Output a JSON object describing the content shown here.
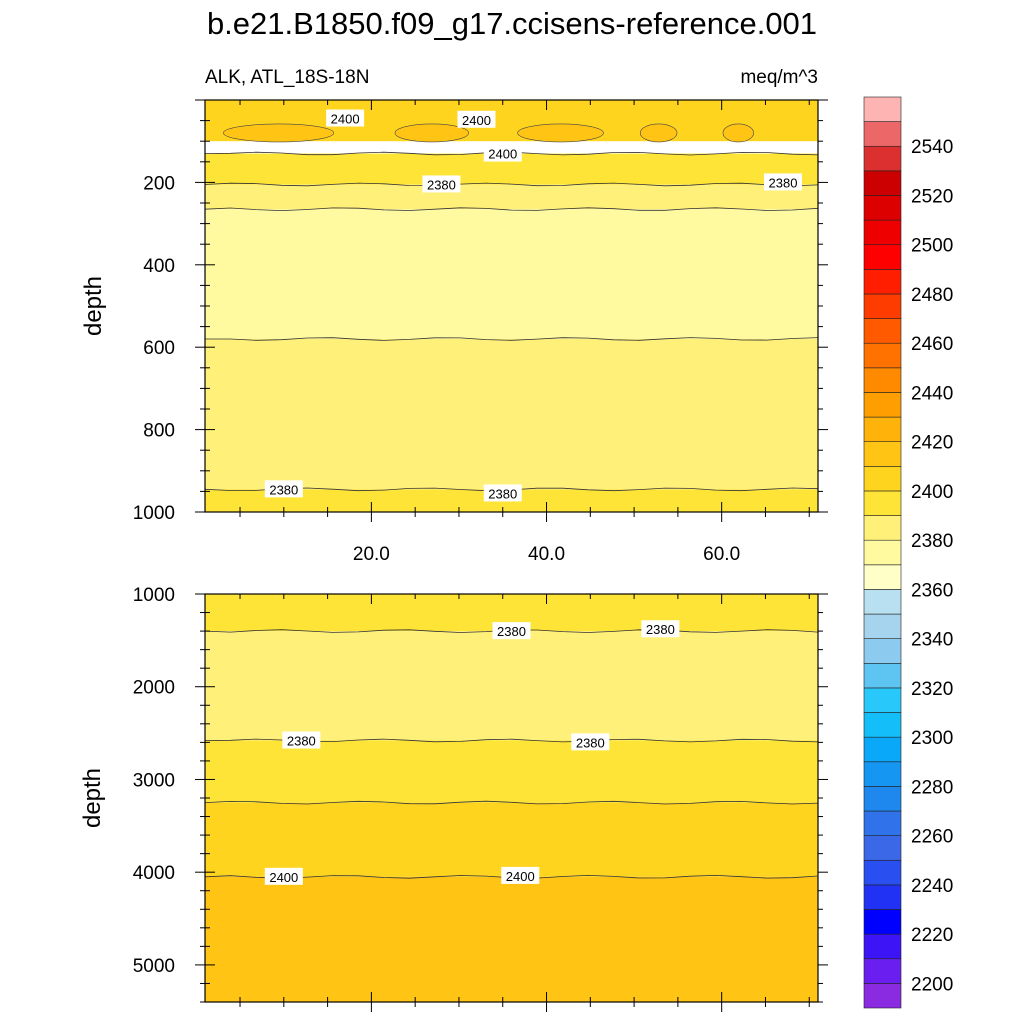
{
  "title": "b.e21.B1850.f09_g17.ccisens-reference.001",
  "subtitle_left": "ALK, ATL_18S-18N",
  "subtitle_right": "meq/m^3",
  "chart_data": [
    {
      "type": "contour",
      "panel": "upper",
      "ylabel": "depth",
      "xlim": [
        1,
        71
      ],
      "ylim": [
        1000,
        0
      ],
      "y_reversed": true,
      "x_ticks": [
        "20.0",
        "40.0",
        "60.0"
      ],
      "y_ticks": [
        "200",
        "400",
        "600",
        "800",
        "1000"
      ],
      "regions": [
        {
          "level_range": [
            2390,
            2400
          ],
          "depth_range": [
            0,
            100
          ]
        },
        {
          "level_range": [
            2400,
            2410
          ],
          "depth_range": [
            30,
            130
          ],
          "note": "patches"
        },
        {
          "level_range": [
            2380,
            2390
          ],
          "depth_range": [
            130,
            205
          ]
        },
        {
          "level_range": [
            2370,
            2380
          ],
          "depth_range": [
            205,
            265
          ]
        },
        {
          "level_range": [
            2360,
            2370
          ],
          "depth_range": [
            265,
            580
          ]
        },
        {
          "level_range": [
            2370,
            2380
          ],
          "depth_range": [
            580,
            945
          ]
        },
        {
          "level_range": [
            2380,
            2390
          ],
          "depth_range": [
            945,
            1000
          ]
        }
      ],
      "contour_labels": [
        {
          "text": "2400",
          "x": 17,
          "depth": 45
        },
        {
          "text": "2400",
          "x": 32,
          "depth": 48
        },
        {
          "text": "2400",
          "x": 35,
          "depth": 130
        },
        {
          "text": "2380",
          "x": 28,
          "depth": 205
        },
        {
          "text": "2380",
          "x": 67,
          "depth": 200
        },
        {
          "text": "2380",
          "x": 10,
          "depth": 945
        },
        {
          "text": "2380",
          "x": 35,
          "depth": 955
        }
      ]
    },
    {
      "type": "contour",
      "panel": "lower",
      "ylabel": "depth",
      "xlim": [
        1,
        71
      ],
      "ylim": [
        5400,
        1000
      ],
      "y_reversed": true,
      "x_ticks": [
        "20.0",
        "40.0",
        "60.0"
      ],
      "y_ticks": [
        "1000",
        "2000",
        "3000",
        "4000",
        "5000"
      ],
      "regions": [
        {
          "level_range": [
            2380,
            2390
          ],
          "depth_range": [
            1000,
            1400
          ]
        },
        {
          "level_range": [
            2370,
            2380
          ],
          "depth_range": [
            1400,
            2580
          ]
        },
        {
          "level_range": [
            2380,
            2390
          ],
          "depth_range": [
            2580,
            3250
          ]
        },
        {
          "level_range": [
            2390,
            2400
          ],
          "depth_range": [
            3250,
            4050
          ]
        },
        {
          "level_range": [
            2400,
            2410
          ],
          "depth_range": [
            4050,
            5400
          ]
        }
      ],
      "contour_labels": [
        {
          "text": "2380",
          "x": 36,
          "depth": 1400
        },
        {
          "text": "2380",
          "x": 53,
          "depth": 1380
        },
        {
          "text": "2380",
          "x": 12,
          "depth": 2580
        },
        {
          "text": "2380",
          "x": 45,
          "depth": 2600
        },
        {
          "text": "2400",
          "x": 10,
          "depth": 4050
        },
        {
          "text": "2400",
          "x": 37,
          "depth": 4040
        }
      ]
    }
  ],
  "colorbar": {
    "tick_labels": [
      "2200",
      "2220",
      "2240",
      "2260",
      "2280",
      "2300",
      "2320",
      "2340",
      "2360",
      "2380",
      "2400",
      "2420",
      "2440",
      "2460",
      "2480",
      "2500",
      "2520",
      "2540"
    ],
    "colors": [
      "#8a2be2",
      "#6a1ff0",
      "#3c14f5",
      "#0000ff",
      "#2232f5",
      "#2a4ff0",
      "#3a68e6",
      "#2f72ea",
      "#1e88ee",
      "#1496f2",
      "#0aa8f8",
      "#14bef8",
      "#28c8fa",
      "#5ec4f2",
      "#8ccbef",
      "#a6d3ed",
      "#b8e0f0",
      "#ffffc8",
      "#fff9a0",
      "#fff07a",
      "#ffe438",
      "#ffd41f",
      "#ffc414",
      "#ffb20a",
      "#ff9e00",
      "#ff8a00",
      "#ff7200",
      "#ff5a00",
      "#ff3c00",
      "#ff1e00",
      "#ff0000",
      "#ee0000",
      "#dd0000",
      "#cc0000",
      "#dc3030",
      "#ec6868",
      "#ffb4b4"
    ]
  }
}
